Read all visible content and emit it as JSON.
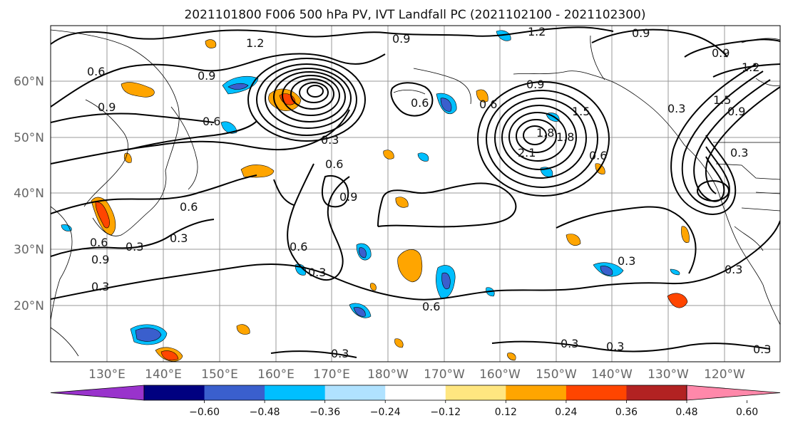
{
  "title": "2021101800 F006 500 hPa PV, IVT Landfall PC (2021102100 - 2021102300)",
  "lat_ticks": [
    "60°N",
    "50°N",
    "40°N",
    "30°N",
    "20°N"
  ],
  "lon_ticks": [
    "130°E",
    "140°E",
    "150°E",
    "160°E",
    "170°E",
    "180°W",
    "170°W",
    "160°W",
    "150°W",
    "140°W",
    "130°W",
    "120°W"
  ],
  "colorbar": {
    "tick_labels": [
      "-0.60",
      "-0.48",
      "-0.36",
      "-0.24",
      "-0.12",
      "0.12",
      "0.24",
      "0.36",
      "0.48",
      "0.60"
    ],
    "colors": [
      "#9933cc",
      "#000080",
      "#3a5fcd",
      "#00bfff",
      "#b0e2ff",
      "#ffffff",
      "#ffe680",
      "#ffa500",
      "#ff4500",
      "#b22222",
      "#ff88aa"
    ]
  },
  "contour_labels": [
    "1.2",
    "0.9",
    "0.9",
    "0.6",
    "1.2",
    "0.6",
    "0.9",
    "0.6",
    "0.9",
    "1.8",
    "0.6",
    "0.9",
    "0.3",
    "0.6",
    "1.2",
    "1.5",
    "0.9",
    "0.3",
    "0.9",
    "1.5",
    "1.8",
    "2.1",
    "0.6",
    "0.3",
    "0.6",
    "0.9",
    "0.6",
    "0.3",
    "0.3",
    "0.6",
    "0.3",
    "0.3",
    "0.9",
    "0.3",
    "0.3",
    "0.6",
    "0.3",
    "0.3",
    "0.3",
    "0.3"
  ]
}
